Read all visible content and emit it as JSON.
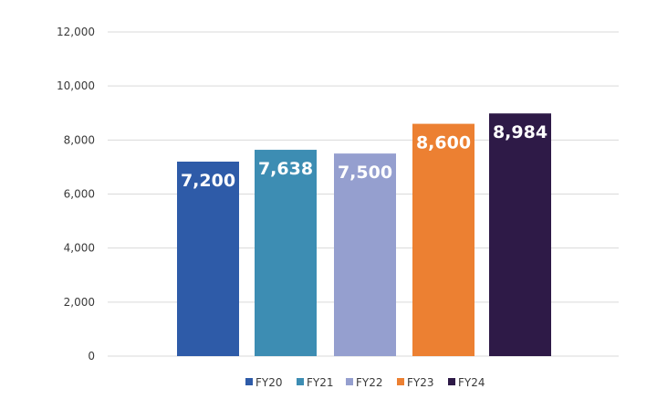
{
  "chart_data": {
    "type": "bar",
    "title": "",
    "xlabel": "",
    "ylabel": "",
    "ylim": [
      0,
      12000
    ],
    "yticks": [
      0,
      2000,
      4000,
      6000,
      8000,
      10000,
      12000
    ],
    "ytick_labels": [
      "0",
      "2,000",
      "4,000",
      "6,000",
      "8,000",
      "10,000",
      "12,000"
    ],
    "grid": true,
    "legend_position": "bottom",
    "categories": [
      "FY20",
      "FY21",
      "FY22",
      "FY23",
      "FY24"
    ],
    "values": [
      7200,
      7638,
      7500,
      8600,
      8984
    ],
    "data_labels": [
      "7,200",
      "7,638",
      "7,500",
      "8,600",
      "8,984"
    ],
    "colors": [
      "#2e5ba8",
      "#3d8db3",
      "#959fcf",
      "#ec8032",
      "#2e1a47"
    ]
  }
}
